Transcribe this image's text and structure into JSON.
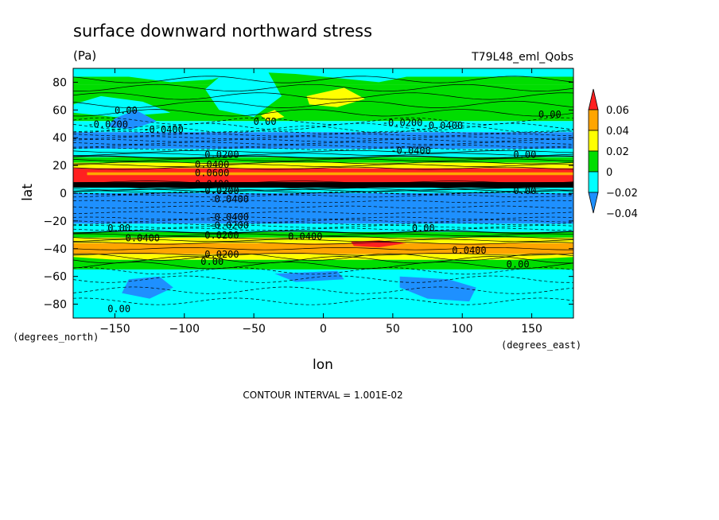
{
  "chart_data": {
    "type": "heatmap",
    "title": "surface downward northward stress",
    "units": "(Pa)",
    "experiment": "T79L48_eml_Qobs",
    "xlabel": "lon",
    "ylabel": "lat",
    "x_units": "(degrees_east)",
    "y_units": "(degrees_north)",
    "xlim": [
      -180,
      180
    ],
    "ylim": [
      -90,
      90
    ],
    "x_ticks": [
      "-150",
      "-100",
      "-50",
      "0",
      "50",
      "100",
      "150"
    ],
    "y_ticks": [
      "80",
      "60",
      "40",
      "20",
      "0",
      "-20",
      "-40",
      "-60",
      "-80"
    ],
    "contour_interval": "CONTOUR INTERVAL = 1.001E-02",
    "colorbar": {
      "levels": [
        "0.06",
        "0.04",
        "0.02",
        "0",
        "-0.02",
        "-0.04"
      ],
      "colors": [
        "#1e90ff",
        "#00ffff",
        "#00dd00",
        "#ffff00",
        "#ffa500",
        "#ff2020"
      ]
    },
    "zonal_bands": [
      {
        "lat_from": 90,
        "lat_to": 78,
        "class": "0 to 0.02"
      },
      {
        "lat_from": 78,
        "lat_to": 52,
        "class": "0 to 0.02"
      },
      {
        "lat_from": 52,
        "lat_to": 44,
        "class": "-0.02 to 0"
      },
      {
        "lat_from": 44,
        "lat_to": 32,
        "class": "-0.04 to -0.02"
      },
      {
        "lat_from": 32,
        "lat_to": 26,
        "class": "-0.02 to 0"
      },
      {
        "lat_from": 26,
        "lat_to": 22,
        "class": "0 to 0.02"
      },
      {
        "lat_from": 22,
        "lat_to": 18,
        "class": "0.02 to 0.04"
      },
      {
        "lat_from": 18,
        "lat_to": 8,
        "class": "> 0.06"
      },
      {
        "lat_from": 8,
        "lat_to": 4,
        "class": "> 0.06 (dense contours)"
      },
      {
        "lat_from": 4,
        "lat_to": 0,
        "class": "-0.02 to 0"
      },
      {
        "lat_from": 0,
        "lat_to": -22,
        "class": "-0.04 to -0.02"
      },
      {
        "lat_from": -22,
        "lat_to": -28,
        "class": "-0.02 to 0"
      },
      {
        "lat_from": -28,
        "lat_to": -32,
        "class": "0 to 0.02"
      },
      {
        "lat_from": -32,
        "lat_to": -36,
        "class": "0.02 to 0.04"
      },
      {
        "lat_from": -36,
        "lat_to": -44,
        "class": "0.04 to 0.06"
      },
      {
        "lat_from": -44,
        "lat_to": -48,
        "class": "0.02 to 0.04"
      },
      {
        "lat_from": -48,
        "lat_to": -54,
        "class": "0 to 0.02"
      },
      {
        "lat_from": -54,
        "lat_to": -90,
        "class": "-0.02 to 0"
      }
    ],
    "contour_labels": [
      {
        "text": "0.00",
        "lon": -142,
        "lat": 58
      },
      {
        "text": "-0.0200",
        "lon": -155,
        "lat": 48
      },
      {
        "text": "-0.0400",
        "lon": -115,
        "lat": 44
      },
      {
        "text": "0.00",
        "lon": -42,
        "lat": 50
      },
      {
        "text": "-0.0200",
        "lon": 57,
        "lat": 49
      },
      {
        "text": "-0.0400",
        "lon": 86,
        "lat": 47
      },
      {
        "text": "0.00",
        "lon": 163,
        "lat": 55
      },
      {
        "text": "-0.0400",
        "lon": 63,
        "lat": 29
      },
      {
        "text": "0.00",
        "lon": 145,
        "lat": 26
      },
      {
        "text": "0.0200",
        "lon": -73,
        "lat": 26
      },
      {
        "text": "0.0400",
        "lon": -80,
        "lat": 19
      },
      {
        "text": "0.0600",
        "lon": -80,
        "lat": 13
      },
      {
        "text": "0.0400",
        "lon": -80,
        "lat": 5
      },
      {
        "text": "-0.0200",
        "lon": -75,
        "lat": 0
      },
      {
        "text": "0.00",
        "lon": 145,
        "lat": 0
      },
      {
        "text": "-0.0400",
        "lon": -68,
        "lat": -6
      },
      {
        "text": "-0.0400",
        "lon": -68,
        "lat": -19
      },
      {
        "text": "-0.0200",
        "lon": -68,
        "lat": -25
      },
      {
        "text": "0.00",
        "lon": -147,
        "lat": -27
      },
      {
        "text": "0.0200",
        "lon": -73,
        "lat": -32
      },
      {
        "text": "0.0400",
        "lon": -130,
        "lat": -34
      },
      {
        "text": "0.0400",
        "lon": -13,
        "lat": -33
      },
      {
        "text": "0.00",
        "lon": 72,
        "lat": -27
      },
      {
        "text": "0.0400",
        "lon": 105,
        "lat": -43
      },
      {
        "text": "0.0200",
        "lon": -73,
        "lat": -46
      },
      {
        "text": "0.00",
        "lon": -80,
        "lat": -51
      },
      {
        "text": "0.00",
        "lon": 140,
        "lat": -53
      },
      {
        "text": "0.00",
        "lon": -147,
        "lat": -85
      }
    ]
  }
}
